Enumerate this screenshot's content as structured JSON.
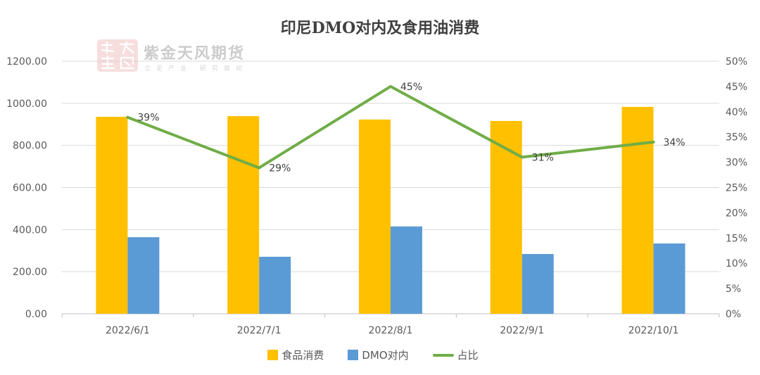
{
  "chart_data": {
    "type": "bar",
    "title": "印尼DMO对内及食用油消费",
    "xlabel": "",
    "ylabel": "",
    "categories": [
      "2022/6/1",
      "2022/7/1",
      "2022/8/1",
      "2022/9/1",
      "2022/10/1"
    ],
    "ylim": [
      0,
      1200
    ],
    "ticks": [
      0,
      200,
      400,
      600,
      800,
      1000,
      1200
    ],
    "tick_labels": [
      "0.00",
      "200.00",
      "400.00",
      "600.00",
      "800.00",
      "1000.00",
      "1200.00"
    ],
    "grid": true,
    "legend": "bottom",
    "series": [
      {
        "name": "食品消费",
        "color": "#FFC000",
        "values": [
          936,
          939,
          923,
          916,
          983
        ]
      },
      {
        "name": "DMO对内",
        "color": "#5B9BD5",
        "values": [
          364,
          271,
          415,
          284,
          334
        ]
      }
    ],
    "secondary": {
      "type": "line",
      "ylim": [
        0,
        50
      ],
      "ticks": [
        0,
        5,
        10,
        15,
        20,
        25,
        30,
        35,
        40,
        45,
        50
      ],
      "tick_labels": [
        "0%",
        "5%",
        "10%",
        "15%",
        "20%",
        "25%",
        "30%",
        "35%",
        "40%",
        "45%",
        "50%"
      ],
      "series": [
        {
          "name": "占比",
          "color": "#70AD47",
          "values": [
            38.9,
            28.9,
            45.0,
            31.0,
            34.0
          ],
          "data_labels": [
            "39%",
            "29%",
            "45%",
            "31%",
            "34%"
          ]
        }
      ]
    }
  },
  "watermark": {
    "brand": "紫金天风期货",
    "slogan": "立足产业 研究驱动",
    "seal_color": "#E8A3A3"
  }
}
